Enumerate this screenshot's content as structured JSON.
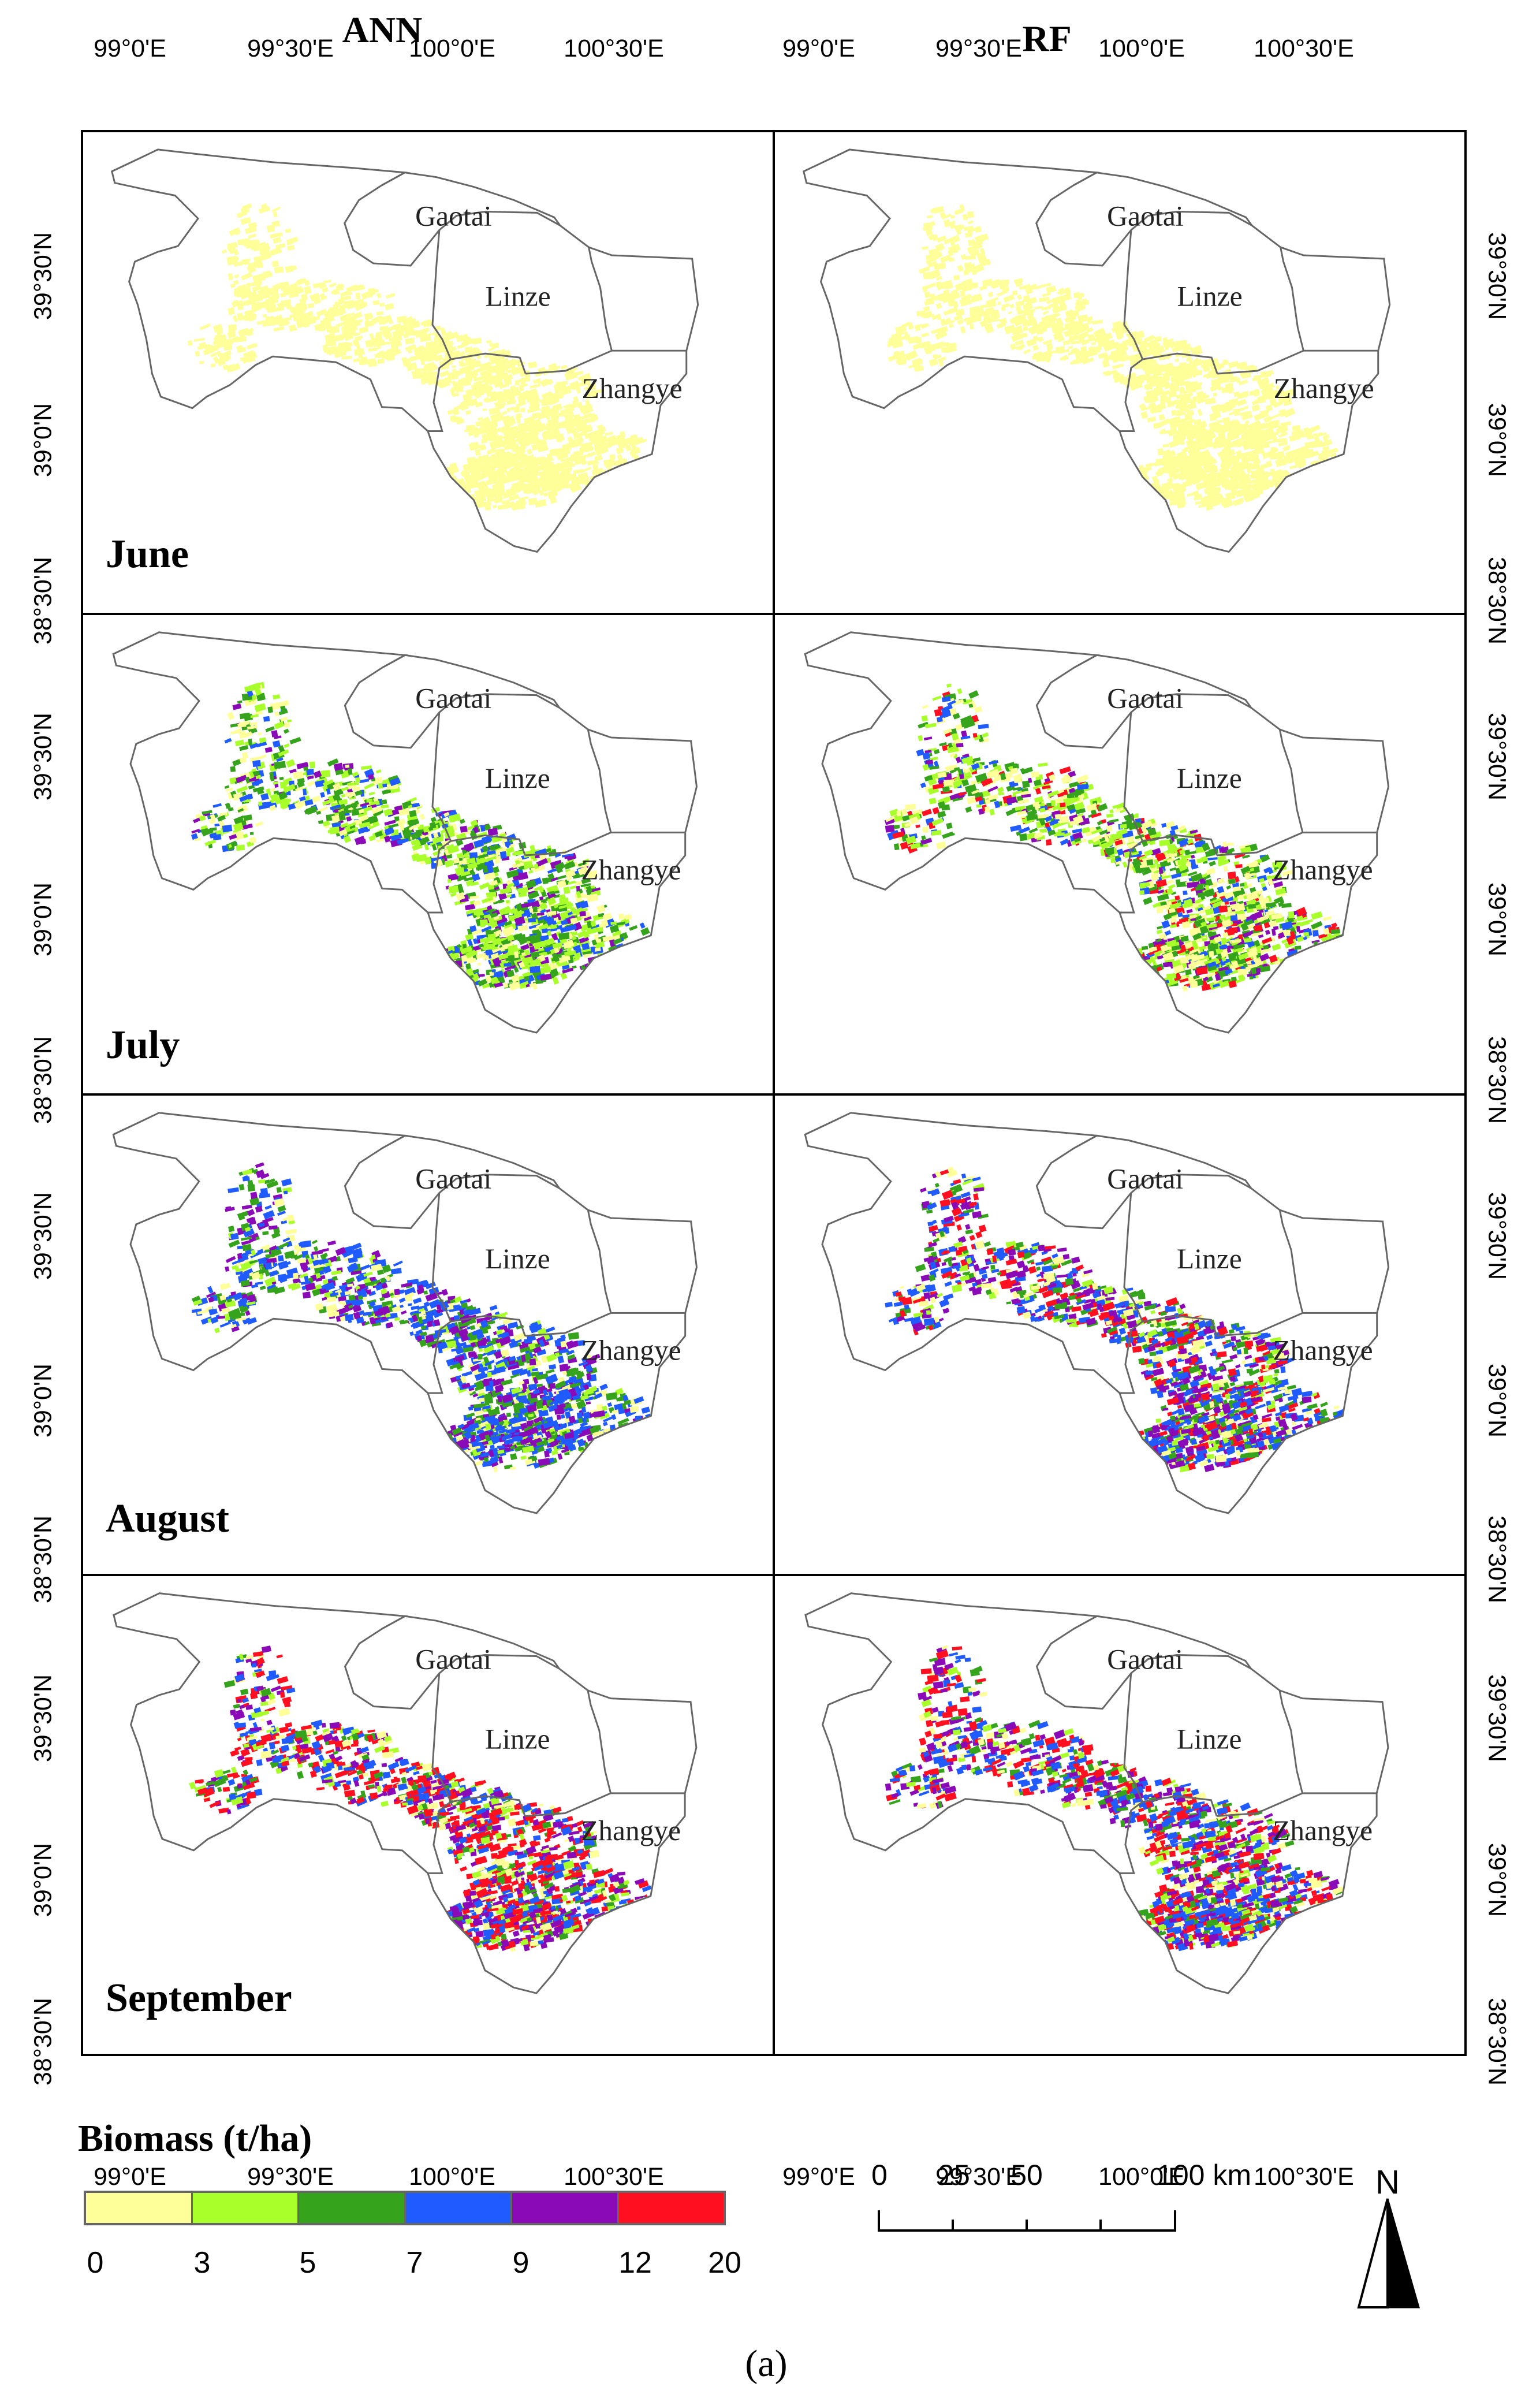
{
  "figure": {
    "caption": "(a)",
    "columns": [
      {
        "id": "ann",
        "title": "ANN"
      },
      {
        "id": "rf",
        "title": "RF"
      }
    ],
    "rows": [
      {
        "month": "June"
      },
      {
        "month": "July"
      },
      {
        "month": "August"
      },
      {
        "month": "September"
      }
    ],
    "counties": [
      "Gaotai",
      "Linze",
      "Zhangye"
    ],
    "longitude_labels": [
      "99°0'E",
      "99°30'E",
      "100°0'E",
      "100°30'E"
    ],
    "latitude_labels": [
      "39°30'N",
      "39°0'N",
      "38°30'N"
    ]
  },
  "legend": {
    "title": "Biomass (t/ha)",
    "classes": [
      {
        "range": "0-3",
        "color": "#ffff99"
      },
      {
        "range": "3-5",
        "color": "#a8ff2a"
      },
      {
        "range": "5-7",
        "color": "#35a31b"
      },
      {
        "range": "7-9",
        "color": "#1f5bff"
      },
      {
        "range": "9-12",
        "color": "#8a0ab8"
      },
      {
        "range": "12-20",
        "color": "#ff0f1f"
      }
    ],
    "tick_labels": [
      "0",
      "3",
      "5",
      "7",
      "9",
      "12",
      "20"
    ]
  },
  "scale_bar": {
    "ticks": [
      "0",
      "25",
      "50",
      "100 km"
    ],
    "unit": "km"
  },
  "north_arrow": {
    "label": "N"
  },
  "panels": [
    {
      "row": "June",
      "model": "ANN",
      "composition": {
        "0-3": 1.0
      }
    },
    {
      "row": "June",
      "model": "RF",
      "composition": {
        "0-3": 1.0
      }
    },
    {
      "row": "July",
      "model": "ANN",
      "composition": {
        "0-3": 0.2,
        "3-5": 0.3,
        "5-7": 0.25,
        "7-9": 0.15,
        "9-12": 0.1
      }
    },
    {
      "row": "July",
      "model": "RF",
      "composition": {
        "0-3": 0.2,
        "3-5": 0.25,
        "5-7": 0.25,
        "7-9": 0.1,
        "9-12": 0.1,
        "12-20": 0.1
      }
    },
    {
      "row": "August",
      "model": "ANN",
      "composition": {
        "0-3": 0.1,
        "3-5": 0.1,
        "5-7": 0.2,
        "7-9": 0.35,
        "9-12": 0.25
      }
    },
    {
      "row": "August",
      "model": "RF",
      "composition": {
        "0-3": 0.1,
        "3-5": 0.1,
        "5-7": 0.15,
        "7-9": 0.25,
        "9-12": 0.25,
        "12-20": 0.15
      }
    },
    {
      "row": "September",
      "model": "ANN",
      "composition": {
        "0-3": 0.1,
        "3-5": 0.1,
        "5-7": 0.1,
        "7-9": 0.2,
        "9-12": 0.2,
        "12-20": 0.3
      }
    },
    {
      "row": "September",
      "model": "RF",
      "composition": {
        "0-3": 0.1,
        "3-5": 0.1,
        "5-7": 0.1,
        "7-9": 0.25,
        "9-12": 0.2,
        "12-20": 0.25
      }
    }
  ]
}
